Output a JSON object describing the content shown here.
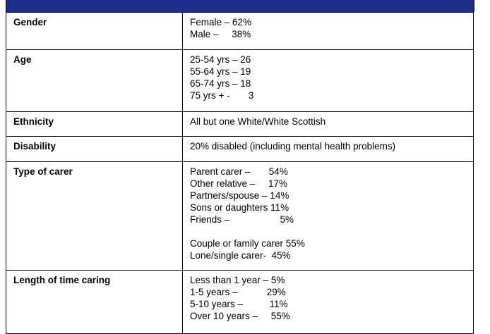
{
  "rows": [
    {
      "label": "Gender",
      "lines": [
        "Female – 62%",
        "Male –     38%"
      ]
    },
    {
      "label": "Age",
      "lines": [
        "25-54 yrs – 26",
        "55-64 yrs – 19",
        "65-74 yrs – 18",
        "75 yrs + -       3"
      ]
    },
    {
      "label": "Ethnicity",
      "lines": [
        "All but one White/White Scottish"
      ]
    },
    {
      "label": "Disability",
      "lines": [
        "20% disabled (including mental health problems)"
      ]
    },
    {
      "label": "Type of carer",
      "lines": [
        "Parent carer –       54%",
        "Other relative –     17%",
        "Partners/spouse – 14%",
        "Sons or daughters 11%",
        "Friends –                   5%",
        "",
        "Couple or family carer 55%",
        "Lone/single carer-  45%"
      ]
    },
    {
      "label": "Length of time caring",
      "lines": [
        "Less than 1 year – 5%",
        "1-5 years –           29%",
        "5-10 years –          11%",
        "Over 10 years –     55%"
      ]
    }
  ]
}
